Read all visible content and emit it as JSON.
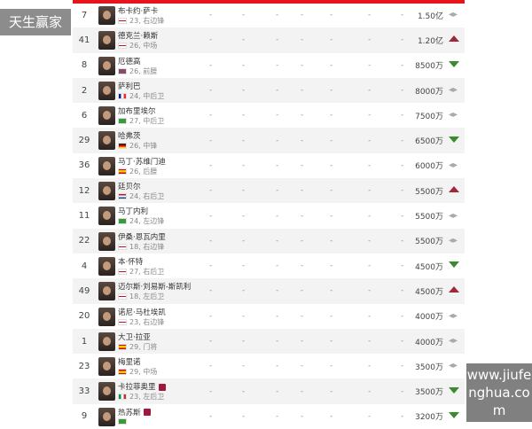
{
  "watermarks": {
    "top_left": "天生赢家",
    "bottom_right": "www.jiufenghua.com"
  },
  "colors": {
    "accent": "#e8141b",
    "up": "#a3263a",
    "down": "#3a8a2e"
  },
  "players": [
    {
      "number": "7",
      "name": "布卡约·萨卡",
      "flag": "eng",
      "info": "23, 右边锋",
      "value": "1.50亿",
      "trend": "flat"
    },
    {
      "number": "41",
      "name": "德克兰·赖斯",
      "flag": "eng",
      "info": "26, 中场",
      "value": "1.20亿",
      "trend": "up"
    },
    {
      "number": "8",
      "name": "厄德高",
      "flag": "nor",
      "info": "26, 前腰",
      "value": "8500万",
      "trend": "down"
    },
    {
      "number": "2",
      "name": "萨利巴",
      "flag": "fra",
      "info": "24, 中后卫",
      "value": "8000万",
      "trend": "flat"
    },
    {
      "number": "6",
      "name": "加布里埃尔",
      "flag": "bra",
      "info": "27, 中后卫",
      "value": "7500万",
      "trend": "flat"
    },
    {
      "number": "29",
      "name": "哈弗茨",
      "flag": "ger",
      "info": "26, 中锋",
      "value": "6500万",
      "trend": "down"
    },
    {
      "number": "36",
      "name": "马丁·苏维门迪",
      "flag": "esp",
      "info": "26, 后腰",
      "value": "6000万",
      "trend": "flat"
    },
    {
      "number": "12",
      "name": "廷贝尔",
      "flag": "ned",
      "info": "24, 右后卫",
      "value": "5500万",
      "trend": "up"
    },
    {
      "number": "11",
      "name": "马丁内利",
      "flag": "bra",
      "info": "24, 左边锋",
      "value": "5500万",
      "trend": "flat"
    },
    {
      "number": "22",
      "name": "伊桑·恩瓦内里",
      "flag": "eng",
      "info": "18, 右边锋",
      "value": "5500万",
      "trend": "flat"
    },
    {
      "number": "4",
      "name": "本·怀特",
      "flag": "eng",
      "info": "27, 右后卫",
      "value": "4500万",
      "trend": "down"
    },
    {
      "number": "49",
      "name": "迈尔斯·刘易斯-斯凯利",
      "flag": "eng",
      "info": "18, 左后卫",
      "value": "4500万",
      "trend": "up"
    },
    {
      "number": "20",
      "name": "诺尼·马杜埃凯",
      "flag": "eng",
      "info": "23, 右边锋",
      "value": "4000万",
      "trend": "flat"
    },
    {
      "number": "1",
      "name": "大卫·拉亚",
      "flag": "esp",
      "info": "29, 门将",
      "value": "4000万",
      "trend": "flat"
    },
    {
      "number": "23",
      "name": "梅里诺",
      "flag": "esp",
      "info": "29, 中场",
      "value": "3500万",
      "trend": "flat"
    },
    {
      "number": "33",
      "name": "卡拉菲奥里",
      "flag": "ita",
      "info": "23, 左后卫",
      "value": "3500万",
      "trend": "down",
      "badge": true
    },
    {
      "number": "9",
      "name": "热苏斯",
      "flag": "bra",
      "info": "",
      "value": "3200万",
      "trend": "down",
      "badge": true
    }
  ],
  "empty_cell": "-"
}
